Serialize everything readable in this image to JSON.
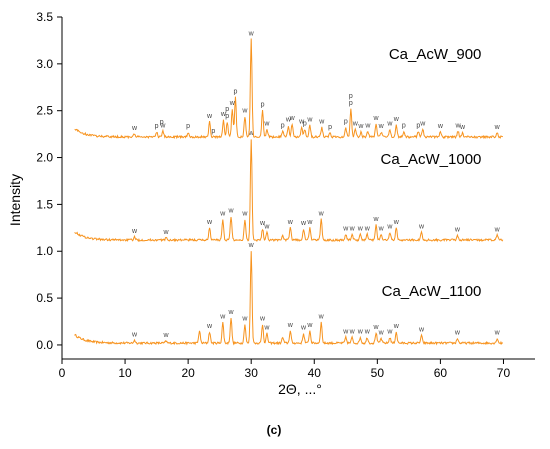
{
  "chart_data": {
    "type": "line",
    "xlabel": "2Θ, ...°",
    "ylabel": "Intensity",
    "caption": "(c)",
    "xlim": [
      0,
      75
    ],
    "ylim": [
      -0.15,
      3.5
    ],
    "xticks": [
      "0",
      "10",
      "20",
      "30",
      "40",
      "50",
      "60",
      "70"
    ],
    "yticks": [
      "0.0",
      "0.5",
      "1.0",
      "1.5",
      "2.0",
      "2.5",
      "3.0",
      "3.5"
    ],
    "grid": false,
    "line_color": "#f7931e",
    "series": [
      {
        "name": "Ca_AcW_900",
        "baseline": 0.02,
        "peaks": [
          [
            11.5,
            0.03
          ],
          [
            16.5,
            0.02
          ],
          [
            21.8,
            0.13
          ],
          [
            23.4,
            0.12
          ],
          [
            25.5,
            0.22
          ],
          [
            26.8,
            0.27
          ],
          [
            29.0,
            0.2
          ],
          [
            30.0,
            0.98
          ],
          [
            31.8,
            0.2
          ],
          [
            32.5,
            0.1
          ],
          [
            35.0,
            0.06
          ],
          [
            36.2,
            0.13
          ],
          [
            38.3,
            0.1
          ],
          [
            39.3,
            0.13
          ],
          [
            41.1,
            0.22
          ],
          [
            45.0,
            0.06
          ],
          [
            46.0,
            0.06
          ],
          [
            47.3,
            0.06
          ],
          [
            48.4,
            0.06
          ],
          [
            49.8,
            0.11
          ],
          [
            50.6,
            0.05
          ],
          [
            52.0,
            0.06
          ],
          [
            53.0,
            0.12
          ],
          [
            57.0,
            0.08
          ],
          [
            62.7,
            0.05
          ],
          [
            69.0,
            0.05
          ]
        ],
        "peak_labels": [
          [
            11.5,
            "w"
          ],
          [
            16.5,
            "w"
          ],
          [
            23.4,
            "w"
          ],
          [
            25.5,
            "w"
          ],
          [
            26.8,
            "w"
          ],
          [
            29.0,
            "w"
          ],
          [
            30.0,
            "w"
          ],
          [
            31.8,
            "w"
          ],
          [
            32.5,
            "w"
          ],
          [
            36.2,
            "w"
          ],
          [
            38.3,
            "w"
          ],
          [
            39.3,
            "w"
          ],
          [
            41.1,
            "w"
          ],
          [
            45.0,
            "w"
          ],
          [
            46.0,
            "w"
          ],
          [
            47.3,
            "w"
          ],
          [
            48.4,
            "w"
          ],
          [
            49.8,
            "w"
          ],
          [
            50.6,
            "w"
          ],
          [
            52.0,
            "w"
          ],
          [
            53.0,
            "w"
          ],
          [
            57.0,
            "w"
          ],
          [
            62.7,
            "w"
          ],
          [
            69.0,
            "w"
          ]
        ]
      },
      {
        "name": "Ca_AcW_1000",
        "baseline": 1.12,
        "peaks": [
          [
            11.5,
            0.03
          ],
          [
            16.5,
            0.02
          ],
          [
            23.4,
            0.13
          ],
          [
            25.5,
            0.22
          ],
          [
            26.8,
            0.25
          ],
          [
            29.0,
            0.22
          ],
          [
            30.0,
            1.08
          ],
          [
            31.8,
            0.12
          ],
          [
            32.5,
            0.08
          ],
          [
            35.0,
            0.05
          ],
          [
            36.2,
            0.13
          ],
          [
            38.3,
            0.12
          ],
          [
            39.3,
            0.13
          ],
          [
            41.1,
            0.22
          ],
          [
            45.0,
            0.06
          ],
          [
            46.0,
            0.06
          ],
          [
            47.3,
            0.06
          ],
          [
            48.4,
            0.06
          ],
          [
            49.8,
            0.16
          ],
          [
            50.6,
            0.06
          ],
          [
            52.0,
            0.08
          ],
          [
            53.0,
            0.13
          ],
          [
            57.0,
            0.08
          ],
          [
            62.7,
            0.05
          ],
          [
            69.0,
            0.05
          ]
        ],
        "peak_labels": [
          [
            11.5,
            "w"
          ],
          [
            16.5,
            "w"
          ],
          [
            23.4,
            "w"
          ],
          [
            25.5,
            "w"
          ],
          [
            26.8,
            "w"
          ],
          [
            29.0,
            "w"
          ],
          [
            30.0,
            "w"
          ],
          [
            31.8,
            "w"
          ],
          [
            32.5,
            "w"
          ],
          [
            36.2,
            "w"
          ],
          [
            38.3,
            "w"
          ],
          [
            39.3,
            "w"
          ],
          [
            41.1,
            "w"
          ],
          [
            45.0,
            "w"
          ],
          [
            46.0,
            "w"
          ],
          [
            47.3,
            "w"
          ],
          [
            48.4,
            "w"
          ],
          [
            49.8,
            "w"
          ],
          [
            50.6,
            "w"
          ],
          [
            52.0,
            "w"
          ],
          [
            53.0,
            "w"
          ],
          [
            57.0,
            "w"
          ],
          [
            62.7,
            "w"
          ],
          [
            69.0,
            "w"
          ]
        ]
      },
      {
        "name": "Ca_AcW_1100",
        "baseline": 2.22,
        "peaks": [
          [
            11.5,
            0.03
          ],
          [
            15.0,
            0.05
          ],
          [
            16.0,
            0.06
          ],
          [
            20.0,
            0.05
          ],
          [
            23.4,
            0.16
          ],
          [
            25.6,
            0.18
          ],
          [
            26.2,
            0.16
          ],
          [
            27.0,
            0.3
          ],
          [
            27.5,
            0.42
          ],
          [
            29.0,
            0.22
          ],
          [
            30.0,
            1.04
          ],
          [
            31.8,
            0.28
          ],
          [
            32.5,
            0.08
          ],
          [
            35.0,
            0.06
          ],
          [
            35.9,
            0.12
          ],
          [
            36.5,
            0.14
          ],
          [
            38.0,
            0.1
          ],
          [
            38.5,
            0.08
          ],
          [
            39.3,
            0.12
          ],
          [
            41.2,
            0.1
          ],
          [
            42.5,
            0.04
          ],
          [
            45.0,
            0.1
          ],
          [
            45.8,
            0.3
          ],
          [
            46.5,
            0.08
          ],
          [
            47.4,
            0.05
          ],
          [
            48.5,
            0.06
          ],
          [
            49.8,
            0.14
          ],
          [
            50.6,
            0.05
          ],
          [
            52.0,
            0.08
          ],
          [
            53.0,
            0.13
          ],
          [
            54.2,
            0.06
          ],
          [
            56.5,
            0.06
          ],
          [
            57.2,
            0.08
          ],
          [
            60.0,
            0.05
          ],
          [
            62.8,
            0.06
          ],
          [
            63.5,
            0.04
          ],
          [
            69.0,
            0.04
          ]
        ],
        "peak_labels": [
          [
            11.5,
            "w"
          ],
          [
            15.0,
            "p"
          ],
          [
            16.0,
            "w"
          ],
          [
            20.0,
            "p"
          ],
          [
            23.4,
            "w"
          ],
          [
            24.0,
            "p"
          ],
          [
            25.6,
            "w"
          ],
          [
            26.2,
            "p"
          ],
          [
            27.0,
            "w"
          ],
          [
            27.5,
            "p"
          ],
          [
            29.0,
            "w"
          ],
          [
            30.0,
            "w"
          ],
          [
            31.8,
            "p"
          ],
          [
            32.5,
            "w"
          ],
          [
            35.0,
            "p"
          ],
          [
            35.9,
            "w"
          ],
          [
            36.5,
            "w"
          ],
          [
            38.0,
            "w"
          ],
          [
            38.5,
            "p"
          ],
          [
            39.3,
            "w"
          ],
          [
            41.2,
            "w"
          ],
          [
            42.5,
            "p"
          ],
          [
            45.0,
            "p"
          ],
          [
            45.8,
            "p"
          ],
          [
            46.5,
            "w"
          ],
          [
            47.4,
            "w"
          ],
          [
            48.5,
            "w"
          ],
          [
            49.8,
            "w"
          ],
          [
            50.6,
            "w"
          ],
          [
            52.0,
            "w"
          ],
          [
            53.0,
            "w"
          ],
          [
            54.2,
            "p"
          ],
          [
            56.5,
            "p"
          ],
          [
            57.2,
            "w"
          ],
          [
            60.0,
            "w"
          ],
          [
            62.8,
            "w"
          ],
          [
            63.5,
            "w"
          ],
          [
            69.0,
            "w"
          ]
        ],
        "secondary_p_labels": [
          [
            15.8,
            "p"
          ],
          [
            26.2,
            "p"
          ],
          [
            45.8,
            "p"
          ]
        ]
      }
    ]
  }
}
